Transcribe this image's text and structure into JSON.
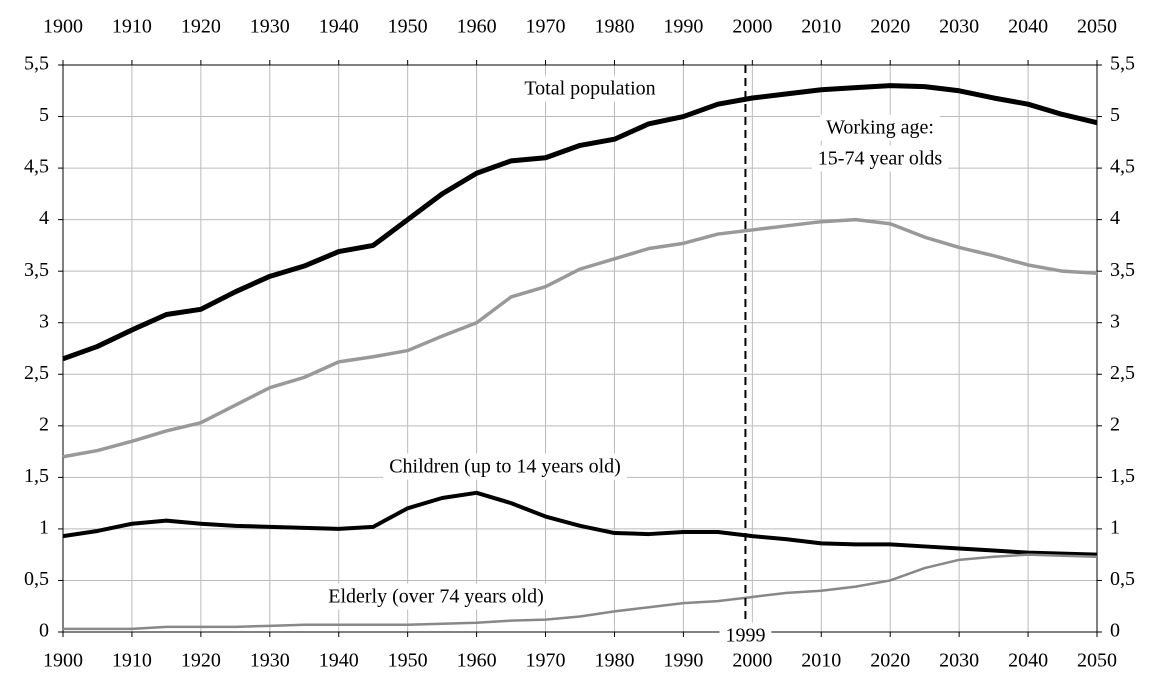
{
  "chart_data": {
    "type": "line",
    "x": [
      1900,
      1905,
      1910,
      1915,
      1920,
      1925,
      1930,
      1935,
      1940,
      1945,
      1950,
      1955,
      1960,
      1965,
      1970,
      1975,
      1980,
      1985,
      1990,
      1995,
      2000,
      2005,
      2010,
      2015,
      2020,
      2025,
      2030,
      2035,
      2040,
      2045,
      2050
    ],
    "series": [
      {
        "name": "Total population",
        "color": "#000000",
        "values": [
          2.65,
          2.77,
          2.93,
          3.08,
          3.13,
          3.3,
          3.45,
          3.55,
          3.69,
          3.75,
          4.0,
          4.25,
          4.45,
          4.57,
          4.6,
          4.72,
          4.78,
          4.93,
          5.0,
          5.12,
          5.18,
          5.22,
          5.26,
          5.28,
          5.3,
          5.29,
          5.25,
          5.18,
          5.12,
          5.02,
          4.94
        ]
      },
      {
        "name": "Working age:",
        "color": "#999999",
        "values": [
          1.7,
          1.76,
          1.85,
          1.95,
          2.03,
          2.2,
          2.37,
          2.47,
          2.62,
          2.67,
          2.73,
          2.87,
          3.0,
          3.25,
          3.35,
          3.52,
          3.62,
          3.72,
          3.77,
          3.86,
          3.9,
          3.94,
          3.98,
          4.0,
          3.96,
          3.83,
          3.73,
          3.65,
          3.56,
          3.5,
          3.48
        ]
      },
      {
        "name": "Children (up to 14 years old)",
        "color": "#000000",
        "values": [
          0.93,
          0.98,
          1.05,
          1.08,
          1.05,
          1.03,
          1.02,
          1.01,
          1.0,
          1.02,
          1.2,
          1.3,
          1.35,
          1.25,
          1.12,
          1.03,
          0.96,
          0.95,
          0.97,
          0.97,
          0.93,
          0.9,
          0.86,
          0.85,
          0.85,
          0.83,
          0.81,
          0.79,
          0.77,
          0.76,
          0.75
        ]
      },
      {
        "name": "Elderly (over 74 years old)",
        "color": "#888888",
        "values": [
          0.03,
          0.03,
          0.03,
          0.05,
          0.05,
          0.05,
          0.06,
          0.07,
          0.07,
          0.07,
          0.07,
          0.08,
          0.09,
          0.11,
          0.12,
          0.15,
          0.2,
          0.24,
          0.28,
          0.3,
          0.34,
          0.38,
          0.4,
          0.44,
          0.5,
          0.62,
          0.7,
          0.73,
          0.75,
          0.74,
          0.73
        ]
      }
    ],
    "annotations": [
      "15-74 year olds"
    ],
    "x_marker": 1999,
    "xlim": [
      1900,
      2050
    ],
    "xticks": [
      1900,
      1910,
      1920,
      1930,
      1940,
      1950,
      1960,
      1970,
      1980,
      1990,
      2000,
      2010,
      2020,
      2030,
      2040,
      2050
    ],
    "ylim": [
      0,
      5.5
    ],
    "yticks": [
      0,
      {
        "value": 0.5,
        "label": "0,5"
      },
      1,
      {
        "value": 1.5,
        "label": "1,5"
      },
      2,
      {
        "value": 2.5,
        "label": "2,5"
      },
      3,
      {
        "value": 3.5,
        "label": "3,5"
      },
      4,
      {
        "value": 4.5,
        "label": "4,5"
      },
      5,
      {
        "value": 5.5,
        "label": "5,5"
      }
    ],
    "grid": true
  }
}
